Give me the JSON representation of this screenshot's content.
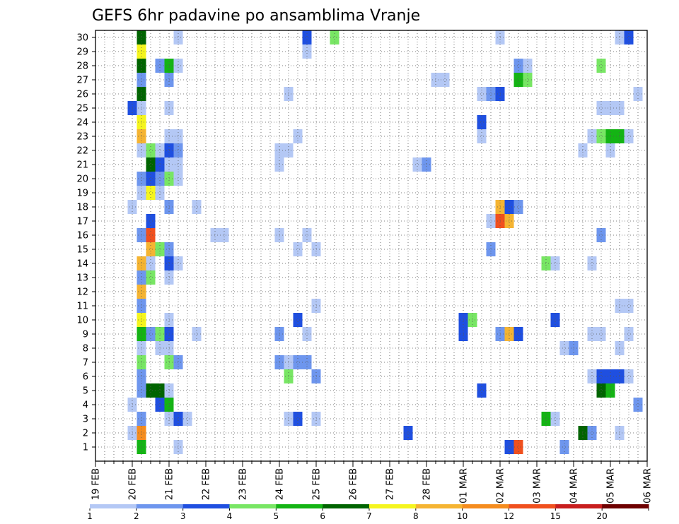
{
  "chart_data": {
    "type": "heatmap",
    "title": "GEFS 6hr padavine po ansamblima Vranje",
    "xlabel": "",
    "ylabel": "",
    "x_unit": "6-hour steps from 19 FEB 00Z",
    "x_range": [
      0,
      60
    ],
    "y_range": [
      0,
      30
    ],
    "grid": true,
    "xtick_labels": [
      {
        "x": 0,
        "label": "19 FEB"
      },
      {
        "x": 4,
        "label": "20 FEB"
      },
      {
        "x": 8,
        "label": "21 FEB"
      },
      {
        "x": 12,
        "label": "22 FEB"
      },
      {
        "x": 16,
        "label": "23 FEB"
      },
      {
        "x": 20,
        "label": "24 FEB"
      },
      {
        "x": 24,
        "label": "25 FEB"
      },
      {
        "x": 28,
        "label": "26 FEB"
      },
      {
        "x": 32,
        "label": "27 FEB"
      },
      {
        "x": 36,
        "label": "28 FEB"
      },
      {
        "x": 40,
        "label": "01 MAR"
      },
      {
        "x": 44,
        "label": "02 MAR"
      },
      {
        "x": 48,
        "label": "03 MAR"
      },
      {
        "x": 52,
        "label": "04 MAR"
      },
      {
        "x": 56,
        "label": "05 MAR"
      },
      {
        "x": 60,
        "label": "06 MAR"
      }
    ],
    "ytick_labels": [
      "1",
      "2",
      "3",
      "4",
      "5",
      "6",
      "7",
      "8",
      "9",
      "10",
      "11",
      "12",
      "13",
      "14",
      "15",
      "16",
      "17",
      "18",
      "19",
      "20",
      "21",
      "22",
      "23",
      "24",
      "25",
      "26",
      "27",
      "28",
      "29",
      "30"
    ],
    "colorbar": {
      "labels": [
        "1",
        "2",
        "3",
        "4",
        "5",
        "6",
        "7",
        "8",
        "10",
        "12",
        "15",
        "20"
      ],
      "colors": [
        "#b4c8f5",
        "#6e96ee",
        "#1f4fe0",
        "#78e664",
        "#14b414",
        "#006400",
        "#f5f51e",
        "#f5b432",
        "#f58c1e",
        "#f0501e",
        "#c81e1e",
        "#6e0000"
      ]
    },
    "cells": [
      [
        5,
        30,
        6
      ],
      [
        9,
        30,
        1
      ],
      [
        23,
        30,
        3
      ],
      [
        26,
        30,
        4
      ],
      [
        44,
        30,
        1
      ],
      [
        57,
        30,
        1
      ],
      [
        58,
        30,
        3
      ],
      [
        5,
        29,
        7
      ],
      [
        23,
        29,
        1
      ],
      [
        5,
        28,
        6
      ],
      [
        7,
        28,
        2
      ],
      [
        8,
        28,
        5
      ],
      [
        9,
        28,
        1
      ],
      [
        46,
        28,
        2
      ],
      [
        47,
        28,
        1
      ],
      [
        55,
        28,
        4
      ],
      [
        5,
        27,
        2
      ],
      [
        8,
        27,
        2
      ],
      [
        37,
        27,
        1
      ],
      [
        38,
        27,
        1
      ],
      [
        46,
        27,
        5
      ],
      [
        47,
        27,
        4
      ],
      [
        5,
        26,
        6
      ],
      [
        21,
        26,
        1
      ],
      [
        42,
        26,
        1
      ],
      [
        43,
        26,
        2
      ],
      [
        44,
        26,
        3
      ],
      [
        59,
        26,
        1
      ],
      [
        4,
        25,
        3
      ],
      [
        5,
        25,
        1
      ],
      [
        8,
        25,
        1
      ],
      [
        55,
        25,
        1
      ],
      [
        56,
        25,
        1
      ],
      [
        57,
        25,
        1
      ],
      [
        5,
        24,
        7
      ],
      [
        42,
        24,
        3
      ],
      [
        5,
        23,
        8
      ],
      [
        8,
        23,
        1
      ],
      [
        9,
        23,
        1
      ],
      [
        22,
        23,
        1
      ],
      [
        42,
        23,
        1
      ],
      [
        54,
        23,
        1
      ],
      [
        55,
        23,
        4
      ],
      [
        56,
        23,
        5
      ],
      [
        57,
        23,
        5
      ],
      [
        58,
        23,
        1
      ],
      [
        5,
        22,
        1
      ],
      [
        6,
        22,
        4
      ],
      [
        7,
        22,
        1
      ],
      [
        8,
        22,
        3
      ],
      [
        9,
        22,
        2
      ],
      [
        20,
        22,
        1
      ],
      [
        21,
        22,
        1
      ],
      [
        53,
        22,
        1
      ],
      [
        56,
        22,
        1
      ],
      [
        6,
        21,
        6
      ],
      [
        7,
        21,
        3
      ],
      [
        8,
        21,
        1
      ],
      [
        9,
        21,
        1
      ],
      [
        20,
        21,
        1
      ],
      [
        35,
        21,
        1
      ],
      [
        36,
        21,
        2
      ],
      [
        5,
        20,
        2
      ],
      [
        6,
        20,
        3
      ],
      [
        7,
        20,
        2
      ],
      [
        8,
        20,
        4
      ],
      [
        9,
        20,
        1
      ],
      [
        5,
        19,
        1
      ],
      [
        6,
        19,
        7
      ],
      [
        7,
        19,
        1
      ],
      [
        4,
        18,
        1
      ],
      [
        8,
        18,
        2
      ],
      [
        11,
        18,
        1
      ],
      [
        44,
        18,
        8
      ],
      [
        45,
        18,
        3
      ],
      [
        46,
        18,
        2
      ],
      [
        6,
        17,
        3
      ],
      [
        43,
        17,
        1
      ],
      [
        44,
        17,
        10
      ],
      [
        45,
        17,
        8
      ],
      [
        5,
        16,
        2
      ],
      [
        6,
        16,
        10
      ],
      [
        13,
        16,
        1
      ],
      [
        14,
        16,
        1
      ],
      [
        20,
        16,
        1
      ],
      [
        23,
        16,
        1
      ],
      [
        55,
        16,
        2
      ],
      [
        6,
        15,
        8
      ],
      [
        7,
        15,
        4
      ],
      [
        8,
        15,
        2
      ],
      [
        22,
        15,
        1
      ],
      [
        24,
        15,
        1
      ],
      [
        43,
        15,
        2
      ],
      [
        5,
        14,
        8
      ],
      [
        6,
        14,
        1
      ],
      [
        8,
        14,
        3
      ],
      [
        9,
        14,
        1
      ],
      [
        49,
        14,
        4
      ],
      [
        50,
        14,
        1
      ],
      [
        54,
        14,
        1
      ],
      [
        5,
        13,
        2
      ],
      [
        6,
        13,
        4
      ],
      [
        8,
        13,
        1
      ],
      [
        5,
        12,
        8
      ],
      [
        5,
        11,
        2
      ],
      [
        24,
        11,
        1
      ],
      [
        57,
        11,
        1
      ],
      [
        58,
        11,
        1
      ],
      [
        5,
        10,
        7
      ],
      [
        8,
        10,
        1
      ],
      [
        22,
        10,
        3
      ],
      [
        40,
        10,
        3
      ],
      [
        41,
        10,
        4
      ],
      [
        50,
        10,
        3
      ],
      [
        5,
        9,
        5
      ],
      [
        6,
        9,
        2
      ],
      [
        7,
        9,
        4
      ],
      [
        8,
        9,
        3
      ],
      [
        11,
        9,
        1
      ],
      [
        20,
        9,
        2
      ],
      [
        23,
        9,
        1
      ],
      [
        40,
        9,
        3
      ],
      [
        44,
        9,
        2
      ],
      [
        45,
        9,
        8
      ],
      [
        46,
        9,
        3
      ],
      [
        54,
        9,
        1
      ],
      [
        55,
        9,
        1
      ],
      [
        58,
        9,
        1
      ],
      [
        5,
        8,
        1
      ],
      [
        7,
        8,
        1
      ],
      [
        8,
        8,
        1
      ],
      [
        51,
        8,
        1
      ],
      [
        52,
        8,
        2
      ],
      [
        57,
        8,
        1
      ],
      [
        5,
        7,
        4
      ],
      [
        8,
        7,
        4
      ],
      [
        9,
        7,
        2
      ],
      [
        20,
        7,
        2
      ],
      [
        21,
        7,
        1
      ],
      [
        22,
        7,
        2
      ],
      [
        23,
        7,
        2
      ],
      [
        5,
        6,
        2
      ],
      [
        21,
        6,
        4
      ],
      [
        24,
        6,
        2
      ],
      [
        54,
        6,
        1
      ],
      [
        55,
        6,
        3
      ],
      [
        56,
        6,
        3
      ],
      [
        57,
        6,
        3
      ],
      [
        58,
        6,
        1
      ],
      [
        5,
        5,
        2
      ],
      [
        6,
        5,
        6
      ],
      [
        7,
        5,
        6
      ],
      [
        8,
        5,
        1
      ],
      [
        42,
        5,
        3
      ],
      [
        55,
        5,
        6
      ],
      [
        56,
        5,
        5
      ],
      [
        4,
        4,
        1
      ],
      [
        7,
        4,
        3
      ],
      [
        8,
        4,
        5
      ],
      [
        59,
        4,
        2
      ],
      [
        5,
        3,
        2
      ],
      [
        8,
        3,
        1
      ],
      [
        9,
        3,
        3
      ],
      [
        10,
        3,
        1
      ],
      [
        21,
        3,
        1
      ],
      [
        22,
        3,
        3
      ],
      [
        24,
        3,
        1
      ],
      [
        49,
        3,
        5
      ],
      [
        50,
        3,
        1
      ],
      [
        4,
        2,
        1
      ],
      [
        5,
        2,
        9
      ],
      [
        34,
        2,
        3
      ],
      [
        53,
        2,
        6
      ],
      [
        54,
        2,
        2
      ],
      [
        57,
        2,
        1
      ],
      [
        5,
        1,
        5
      ],
      [
        9,
        1,
        1
      ],
      [
        45,
        1,
        3
      ],
      [
        46,
        1,
        10
      ],
      [
        51,
        1,
        2
      ]
    ]
  }
}
